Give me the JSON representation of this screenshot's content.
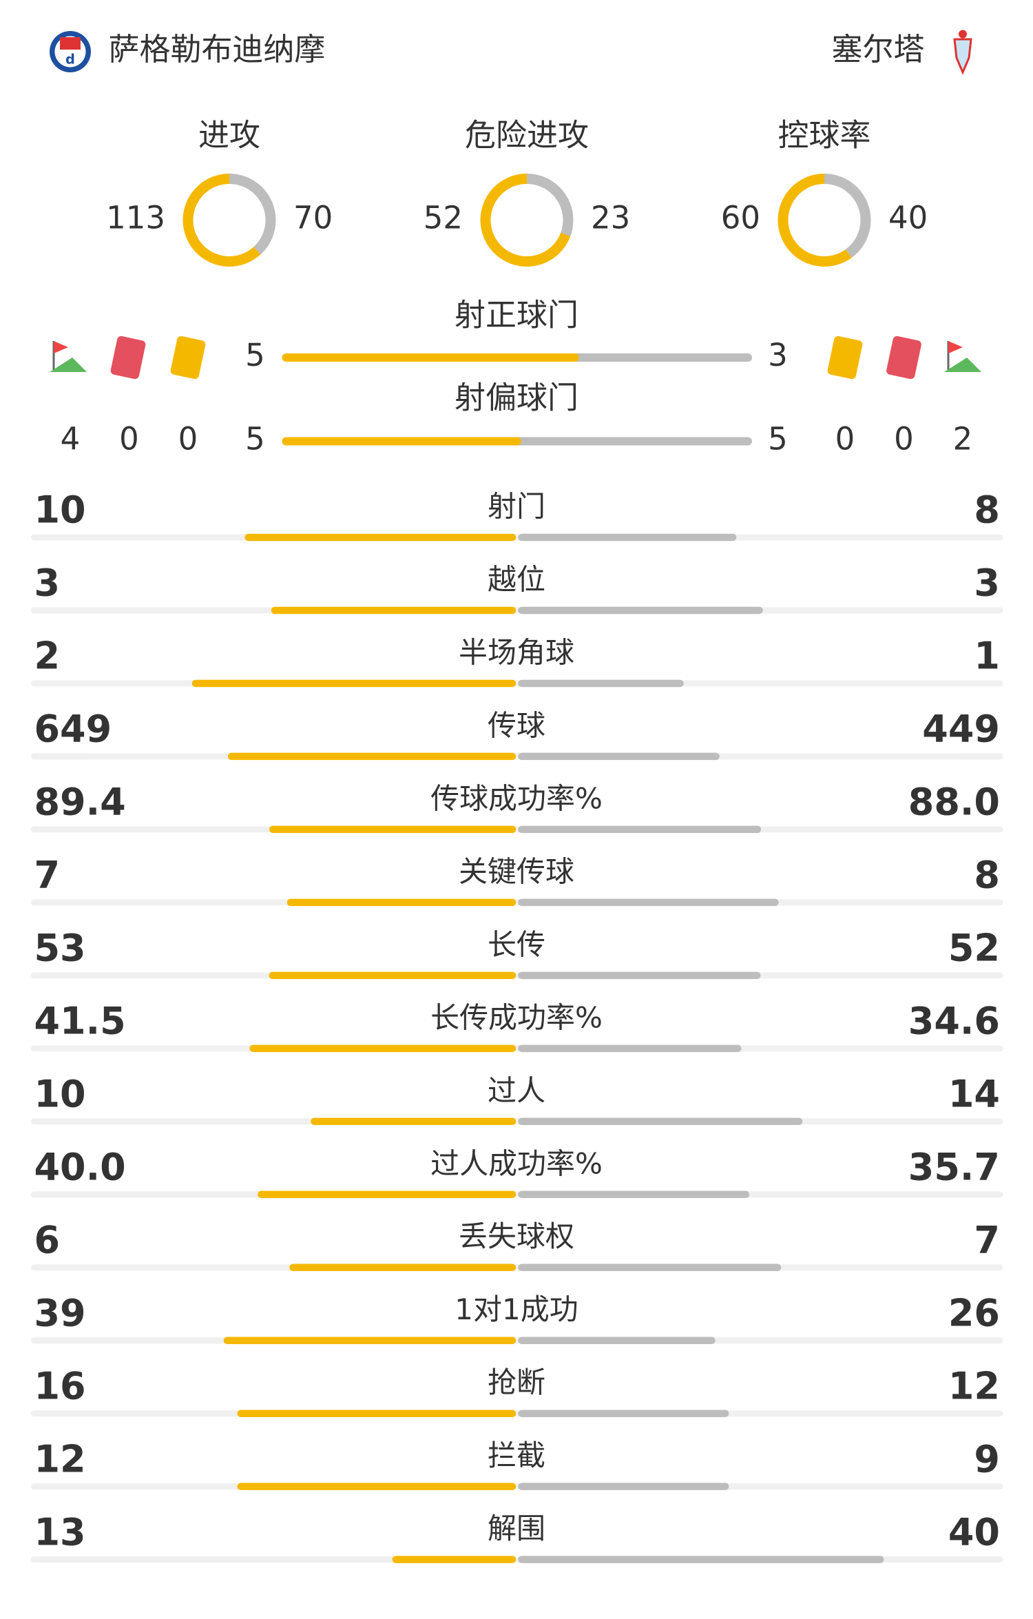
{
  "header": {
    "home_team": "萨格勒布迪纳摩",
    "away_team": "塞尔塔"
  },
  "rings": [
    {
      "label": "进攻",
      "home": 113,
      "away": 70
    },
    {
      "label": "危险进攻",
      "home": 52,
      "away": 23
    },
    {
      "label": "控球率",
      "home": 60,
      "away": 40
    }
  ],
  "shots_on_target": {
    "label": "射正球门",
    "home": 5,
    "away": 3
  },
  "shots_off_target": {
    "label": "射偏球门",
    "home": 5,
    "away": 5
  },
  "cards": {
    "home": {
      "corners": 4,
      "red": 0,
      "yellow": 0
    },
    "away": {
      "yellow": 0,
      "red": 0,
      "corners": 2
    }
  },
  "stats": [
    {
      "label": "射门",
      "home": 10,
      "away": 8
    },
    {
      "label": "越位",
      "home": 3,
      "away": 3
    },
    {
      "label": "半场角球",
      "home": 2,
      "away": 1
    },
    {
      "label": "传球",
      "home": 649,
      "away": 449
    },
    {
      "label": "传球成功率%",
      "home": 89.4,
      "away": 88,
      "away_label": "88.0"
    },
    {
      "label": "关键传球",
      "home": 7,
      "away": 8
    },
    {
      "label": "长传",
      "home": 53,
      "away": 52
    },
    {
      "label": "长传成功率%",
      "home": 41.5,
      "away": 34.6
    },
    {
      "label": "过人",
      "home": 10,
      "away": 14
    },
    {
      "label": "过人成功率%",
      "home": 40,
      "home_label": "40.0",
      "away": 35.7
    },
    {
      "label": "丢失球权",
      "home": 6,
      "away": 7
    },
    {
      "label": "1对1成功",
      "home": 39,
      "away": 26
    },
    {
      "label": "抢断",
      "home": 16,
      "away": 12
    },
    {
      "label": "拦截",
      "home": 12,
      "away": 9
    },
    {
      "label": "解围",
      "home": 13,
      "away": 40
    }
  ]
}
